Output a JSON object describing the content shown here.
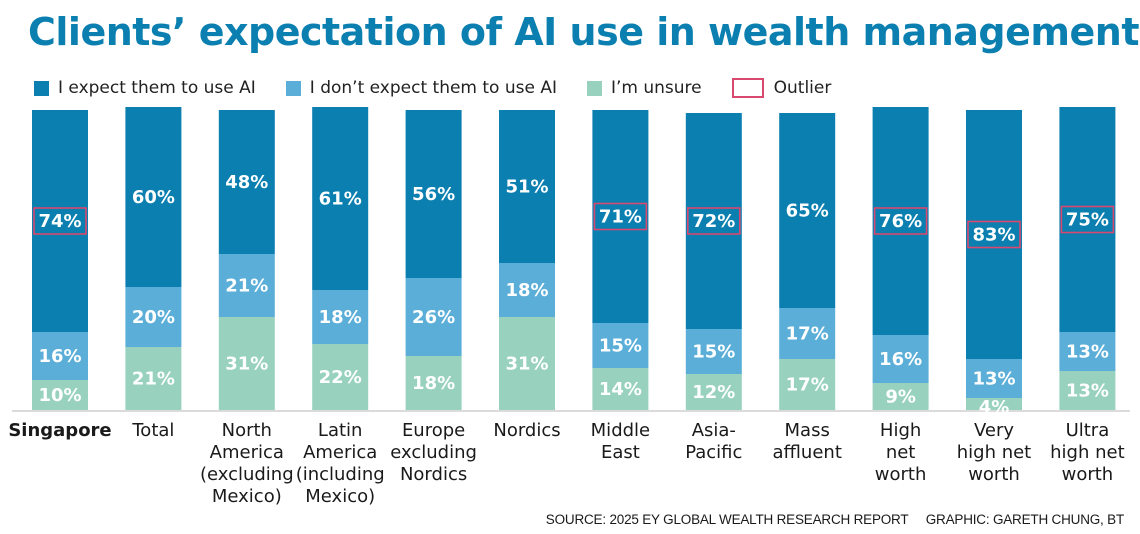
{
  "chart_data": {
    "type": "bar",
    "stacked": true,
    "title": "Clients’ expectation of AI use in wealth management",
    "xlabel": "",
    "ylabel": "",
    "ylim": [
      0,
      100
    ],
    "grid": false,
    "legend_position": "top-left",
    "categories": [
      "Singapore",
      "Total",
      "North America (excluding Mexico)",
      "Latin America (including Mexico)",
      "Europe excluding Nordics",
      "Nordics",
      "Middle East",
      "Asia-Pacific",
      "Mass affluent",
      "High net worth",
      "Very high net worth",
      "Ultra high net worth"
    ],
    "category_lines": [
      [
        "Singapore"
      ],
      [
        "Total"
      ],
      [
        "North",
        "America",
        "(excluding",
        "Mexico)"
      ],
      [
        "Latin",
        "America",
        "(including",
        "Mexico)"
      ],
      [
        "Europe",
        "excluding",
        "Nordics"
      ],
      [
        "Nordics"
      ],
      [
        "Middle",
        "East"
      ],
      [
        "Asia-",
        "Pacific"
      ],
      [
        "Mass",
        "affluent"
      ],
      [
        "High",
        "net",
        "worth"
      ],
      [
        "Very",
        "high net",
        "worth"
      ],
      [
        "Ultra",
        "high net",
        "worth"
      ]
    ],
    "highlight_category": "Singapore",
    "series": [
      {
        "name": "I’m unsure",
        "color": "#98d2be",
        "values": [
          10,
          21,
          31,
          22,
          18,
          31,
          14,
          12,
          17,
          9,
          4,
          13
        ]
      },
      {
        "name": "I don’t expect them to use AI",
        "color": "#5aaed8",
        "values": [
          16,
          20,
          21,
          18,
          26,
          18,
          15,
          15,
          17,
          16,
          13,
          13
        ]
      },
      {
        "name": "I expect them to use AI",
        "color": "#0a7fb0",
        "values": [
          74,
          60,
          48,
          61,
          56,
          51,
          71,
          72,
          65,
          76,
          83,
          75
        ]
      }
    ],
    "outliers": [
      {
        "series": "I expect them to use AI",
        "category": "Singapore"
      },
      {
        "series": "I expect them to use AI",
        "category": "Middle East"
      },
      {
        "series": "I expect them to use AI",
        "category": "Asia-Pacific"
      },
      {
        "series": "I expect them to use AI",
        "category": "High net worth"
      },
      {
        "series": "I expect them to use AI",
        "category": "Very high net worth"
      },
      {
        "series": "I expect them to use AI",
        "category": "Ultra high net worth"
      }
    ],
    "outlier_color": "#d9486e",
    "value_suffix": "%"
  },
  "legend": [
    {
      "label": "I expect them to use AI",
      "color": "#0a7fb0"
    },
    {
      "label": "I don’t expect them to use AI",
      "color": "#5aaed8"
    },
    {
      "label": "I’m unsure",
      "color": "#98d2be"
    },
    {
      "label": "Outlier",
      "color": "#d9486e"
    }
  ],
  "footer": {
    "source": "SOURCE: 2025 EY GLOBAL WEALTH RESEARCH REPORT",
    "graphic": "GRAPHIC: GARETH CHUNG, BT"
  }
}
